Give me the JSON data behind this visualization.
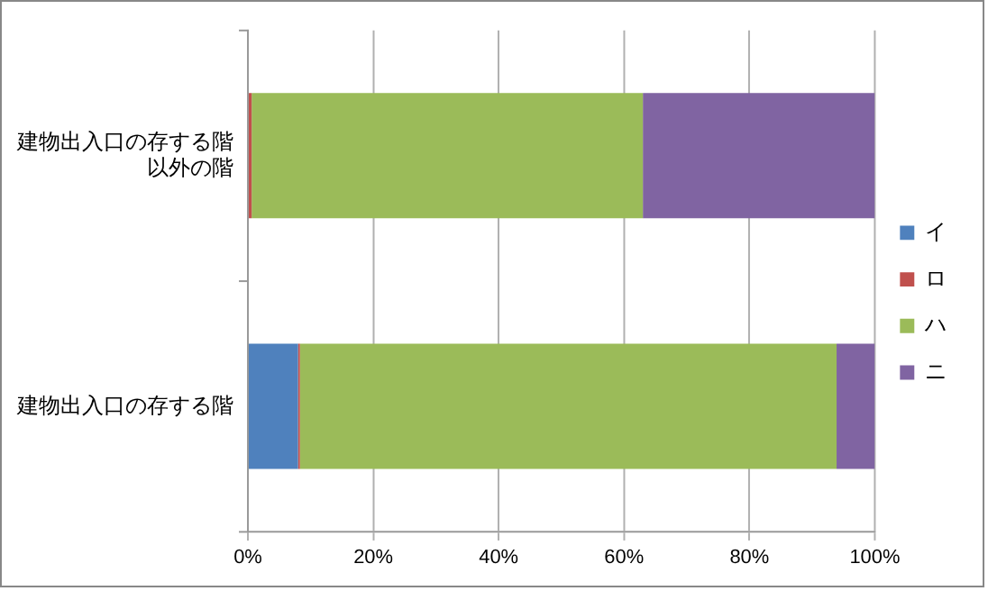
{
  "chart_data": {
    "type": "bar",
    "orientation": "horizontal",
    "stacked": true,
    "categories": [
      "建物出入口の存する階以外の階",
      "建物出入口の存する階"
    ],
    "series": [
      {
        "name": "イ",
        "color": "#4f81bd",
        "values": [
          0,
          8
        ]
      },
      {
        "name": "ロ",
        "color": "#c0504d",
        "values": [
          0.6,
          0.3
        ]
      },
      {
        "name": "ハ",
        "color": "#9bbb59",
        "values": [
          62.4,
          85.6
        ]
      },
      {
        "name": "ニ",
        "color": "#8064a2",
        "values": [
          37,
          6.1
        ]
      }
    ],
    "xlim": [
      0,
      100
    ],
    "xticks": [
      {
        "value": 0,
        "label": "0%"
      },
      {
        "value": 20,
        "label": "20%"
      },
      {
        "value": 40,
        "label": "40%"
      },
      {
        "value": 60,
        "label": "60%"
      },
      {
        "value": 80,
        "label": "80%"
      },
      {
        "value": 100,
        "label": "100%"
      }
    ],
    "grid": "x",
    "legend": "right"
  }
}
